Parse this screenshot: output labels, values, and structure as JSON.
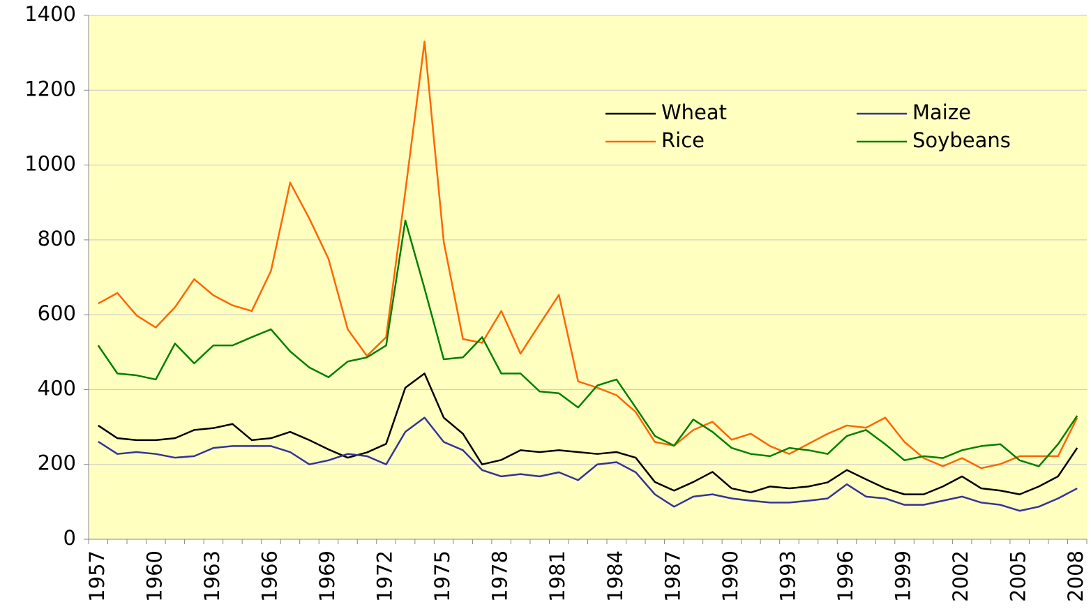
{
  "chart_data": {
    "type": "line",
    "categories": [
      "1957",
      null,
      null,
      "1960",
      null,
      null,
      "1963",
      null,
      null,
      "1966",
      null,
      null,
      "1969",
      null,
      null,
      "1972",
      null,
      null,
      "1975",
      null,
      null,
      "1978",
      null,
      null,
      "1981",
      null,
      null,
      "1984",
      null,
      null,
      "1987",
      null,
      null,
      "1990",
      null,
      null,
      "1993",
      null,
      null,
      "1996",
      null,
      null,
      "1999",
      null,
      null,
      "2002",
      null,
      null,
      "2005",
      null,
      null,
      "2008"
    ],
    "series": [
      {
        "name": "Wheat",
        "color": "#000000",
        "values": [
          304,
          270,
          265,
          265,
          270,
          292,
          297,
          308,
          265,
          270,
          287,
          265,
          240,
          218,
          232,
          255,
          405,
          443,
          325,
          282,
          200,
          212,
          238,
          233,
          238,
          233,
          228,
          233,
          218,
          153,
          130,
          153,
          180,
          136,
          125,
          141,
          136,
          141,
          152,
          185,
          160,
          136,
          120,
          120,
          141,
          168,
          136,
          130,
          120,
          141,
          168,
          244
        ]
      },
      {
        "name": "Maize",
        "color": "#333399",
        "values": [
          261,
          228,
          233,
          228,
          218,
          222,
          244,
          249,
          249,
          249,
          233,
          200,
          211,
          228,
          222,
          200,
          287,
          325,
          260,
          238,
          185,
          168,
          174,
          168,
          179,
          158,
          200,
          206,
          179,
          120,
          87,
          114,
          120,
          109,
          103,
          98,
          98,
          103,
          109,
          147,
          114,
          109,
          92,
          92,
          103,
          114,
          98,
          92,
          76,
          87,
          109,
          136
        ]
      },
      {
        "name": "Rice",
        "color": "#ff6600",
        "values": [
          630,
          658,
          598,
          566,
          620,
          695,
          652,
          625,
          610,
          717,
          953,
          857,
          749,
          561,
          490,
          540,
          930,
          1330,
          795,
          535,
          525,
          610,
          496,
          575,
          653,
          422,
          405,
          385,
          340,
          260,
          250,
          292,
          314,
          266,
          282,
          249,
          228,
          255,
          282,
          304,
          298,
          325,
          260,
          217,
          195,
          217,
          190,
          201,
          222,
          222,
          222,
          325
        ]
      },
      {
        "name": "Soybeans",
        "color": "#008000",
        "values": [
          518,
          443,
          438,
          427,
          523,
          470,
          518,
          518,
          540,
          561,
          502,
          459,
          433,
          475,
          486,
          518,
          852,
          670,
          481,
          486,
          540,
          443,
          443,
          395,
          390,
          352,
          411,
          427,
          352,
          276,
          250,
          320,
          287,
          244,
          228,
          222,
          244,
          238,
          228,
          276,
          292,
          254,
          211,
          222,
          217,
          238,
          249,
          254,
          211,
          195,
          254,
          330
        ]
      }
    ],
    "ylim": [
      0,
      1400
    ],
    "yticks": [
      0,
      200,
      400,
      600,
      800,
      1000,
      1200,
      1400
    ],
    "grid": true
  }
}
